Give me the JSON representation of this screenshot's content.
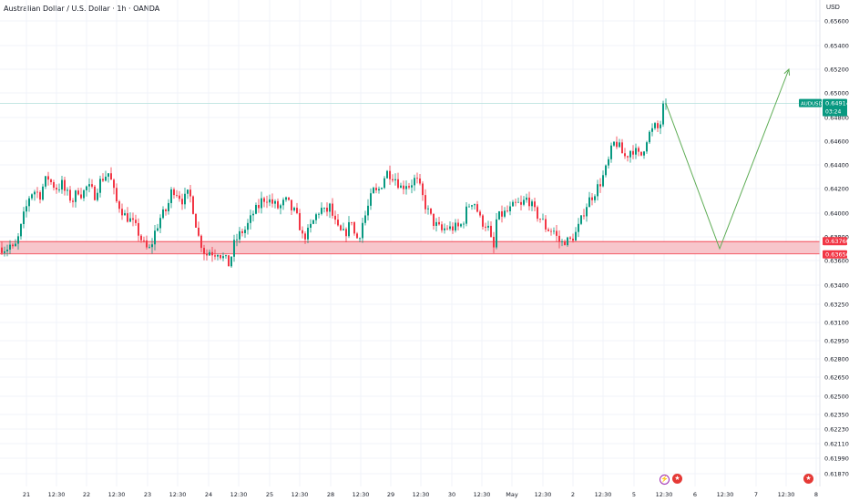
{
  "header": {
    "title": "Australian Dollar / U.S. Dollar · 1h · OANDA",
    "currency": "USD"
  },
  "colors": {
    "up": "#089981",
    "down": "#f23645",
    "zone_fill": "#f7c6cb",
    "zone_line": "#f23645",
    "arrow": "#5fad56",
    "price_badge": "#089981",
    "grid": "#f0f3fa",
    "hline": "#b2dfdb"
  },
  "chart_data": {
    "type": "candlestick",
    "symbol": "AUDUSD",
    "ylim": [
      0.6181,
      0.6565
    ],
    "y_ticks": [
      "0.65600",
      "0.65400",
      "0.65200",
      "0.65000",
      "0.64800",
      "0.64600",
      "0.64400",
      "0.64200",
      "0.64000",
      "0.63800",
      "0.63600",
      "0.63400",
      "0.63250",
      "0.63100",
      "0.62950",
      "0.62800",
      "0.62650",
      "0.62500",
      "0.62350",
      "0.62230",
      "0.62110",
      "0.61990",
      "0.61870"
    ],
    "x_ticks": [
      "21",
      "12:30",
      "22",
      "12:30",
      "23",
      "12:30",
      "24",
      "12:30",
      "25",
      "12:30",
      "28",
      "12:30",
      "29",
      "12:30",
      "30",
      "12:30",
      "May",
      "12:30",
      "2",
      "12:30",
      "5",
      "12:30",
      "6",
      "12:30",
      "7",
      "12:30",
      "8"
    ],
    "last_price": {
      "label": "AUDUSD",
      "value": "0.64914",
      "countdown": "03:24"
    },
    "support_zone": {
      "top": 0.6376,
      "bottom": 0.63656,
      "top_label": "0.63760",
      "bottom_label": "0.63656"
    },
    "projection": [
      0.64914,
      0.637,
      0.652
    ],
    "close_anchors": [
      [
        0,
        0.6371
      ],
      [
        6,
        0.637
      ],
      [
        10,
        0.6373
      ],
      [
        14,
        0.6368
      ],
      [
        20,
        0.6381
      ],
      [
        24,
        0.6395
      ],
      [
        28,
        0.6405
      ],
      [
        32,
        0.6416
      ],
      [
        37,
        0.6418
      ],
      [
        43,
        0.6415
      ],
      [
        48,
        0.6426
      ],
      [
        52,
        0.6429
      ],
      [
        56,
        0.6424
      ],
      [
        62,
        0.642
      ],
      [
        67,
        0.6424
      ],
      [
        70,
        0.6418
      ],
      [
        75,
        0.6413
      ],
      [
        80,
        0.641
      ],
      [
        84,
        0.642
      ],
      [
        89,
        0.6415
      ],
      [
        94,
        0.6421
      ],
      [
        98,
        0.642
      ],
      [
        103,
        0.6415
      ],
      [
        108,
        0.6425
      ],
      [
        113,
        0.643
      ],
      [
        118,
        0.6433
      ],
      [
        122,
        0.6424
      ],
      [
        126,
        0.641
      ],
      [
        131,
        0.6405
      ],
      [
        136,
        0.6398
      ],
      [
        141,
        0.6395
      ],
      [
        146,
        0.639
      ],
      [
        150,
        0.6385
      ],
      [
        154,
        0.6378
      ],
      [
        158,
        0.6372
      ],
      [
        162,
        0.6368
      ],
      [
        165,
        0.6372
      ],
      [
        168,
        0.6382
      ],
      [
        172,
        0.639
      ],
      [
        176,
        0.6398
      ],
      [
        180,
        0.64
      ],
      [
        184,
        0.6408
      ],
      [
        188,
        0.642
      ],
      [
        192,
        0.6418
      ],
      [
        196,
        0.6414
      ],
      [
        200,
        0.641
      ],
      [
        205,
        0.6415
      ],
      [
        209,
        0.6412
      ],
      [
        213,
        0.6395
      ],
      [
        217,
        0.638
      ],
      [
        221,
        0.6372
      ],
      [
        225,
        0.6364
      ],
      [
        229,
        0.6368
      ],
      [
        234,
        0.6366
      ],
      [
        238,
        0.6368
      ],
      [
        242,
        0.6364
      ],
      [
        247,
        0.636
      ],
      [
        251,
        0.6356
      ],
      [
        255,
        0.6372
      ],
      [
        260,
        0.638
      ],
      [
        264,
        0.6384
      ],
      [
        268,
        0.6386
      ],
      [
        273,
        0.6393
      ],
      [
        277,
        0.64
      ],
      [
        282,
        0.6404
      ],
      [
        286,
        0.641
      ],
      [
        291,
        0.6413
      ],
      [
        295,
        0.641
      ],
      [
        300,
        0.6407
      ],
      [
        305,
        0.6404
      ],
      [
        310,
        0.6408
      ],
      [
        314,
        0.641
      ],
      [
        318,
        0.6404
      ],
      [
        323,
        0.64
      ],
      [
        327,
        0.6392
      ],
      [
        331,
        0.638
      ],
      [
        336,
        0.6382
      ],
      [
        341,
        0.639
      ],
      [
        346,
        0.6398
      ],
      [
        351,
        0.6404
      ],
      [
        356,
        0.64
      ],
      [
        361,
        0.6405
      ],
      [
        366,
        0.6393
      ],
      [
        370,
        0.6386
      ],
      [
        375,
        0.6382
      ],
      [
        380,
        0.6385
      ],
      [
        385,
        0.6395
      ],
      [
        389,
        0.6378
      ],
      [
        393,
        0.638
      ],
      [
        397,
        0.6392
      ],
      [
        401,
        0.64
      ],
      [
        405,
        0.641
      ],
      [
        409,
        0.6418
      ],
      [
        413,
        0.6416
      ],
      [
        418,
        0.6424
      ],
      [
        423,
        0.6434
      ],
      [
        428,
        0.6432
      ],
      [
        432,
        0.643
      ],
      [
        436,
        0.6425
      ],
      [
        440,
        0.642
      ],
      [
        444,
        0.6425
      ],
      [
        449,
        0.6422
      ],
      [
        453,
        0.6428
      ],
      [
        458,
        0.6425
      ],
      [
        462,
        0.6415
      ],
      [
        467,
        0.6404
      ],
      [
        471,
        0.6398
      ],
      [
        475,
        0.6392
      ],
      [
        480,
        0.6388
      ],
      [
        484,
        0.6385
      ],
      [
        489,
        0.6388
      ],
      [
        493,
        0.6387
      ],
      [
        498,
        0.6388
      ],
      [
        503,
        0.6388
      ],
      [
        507,
        0.6392
      ],
      [
        511,
        0.6402
      ],
      [
        516,
        0.641
      ],
      [
        521,
        0.6408
      ],
      [
        525,
        0.6396
      ],
      [
        529,
        0.6392
      ],
      [
        533,
        0.639
      ],
      [
        537,
        0.6384
      ],
      [
        540,
        0.6362
      ],
      [
        544,
        0.6394
      ],
      [
        548,
        0.6398
      ],
      [
        553,
        0.64
      ],
      [
        558,
        0.6402
      ],
      [
        562,
        0.6405
      ],
      [
        567,
        0.6408
      ],
      [
        571,
        0.6405
      ],
      [
        576,
        0.6412
      ],
      [
        580,
        0.641
      ],
      [
        585,
        0.6402
      ],
      [
        589,
        0.6398
      ],
      [
        594,
        0.6394
      ],
      [
        598,
        0.6388
      ],
      [
        602,
        0.6386
      ],
      [
        607,
        0.6385
      ],
      [
        611,
        0.6378
      ],
      [
        615,
        0.6374
      ],
      [
        619,
        0.6377
      ],
      [
        624,
        0.6376
      ],
      [
        628,
        0.638
      ],
      [
        632,
        0.6384
      ],
      [
        637,
        0.6394
      ],
      [
        641,
        0.6404
      ],
      [
        645,
        0.641
      ],
      [
        650,
        0.6415
      ],
      [
        654,
        0.642
      ],
      [
        658,
        0.6425
      ],
      [
        662,
        0.6432
      ],
      [
        666,
        0.644
      ],
      [
        670,
        0.6452
      ],
      [
        674,
        0.646
      ],
      [
        678,
        0.6456
      ],
      [
        682,
        0.645
      ],
      [
        686,
        0.6446
      ],
      [
        690,
        0.6452
      ],
      [
        694,
        0.6453
      ],
      [
        698,
        0.645
      ],
      [
        702,
        0.6446
      ],
      [
        706,
        0.6455
      ],
      [
        710,
        0.6465
      ],
      [
        714,
        0.6468
      ],
      [
        718,
        0.6472
      ],
      [
        722,
        0.647
      ],
      [
        726,
        0.648
      ],
      [
        730,
        0.6491
      ]
    ]
  }
}
